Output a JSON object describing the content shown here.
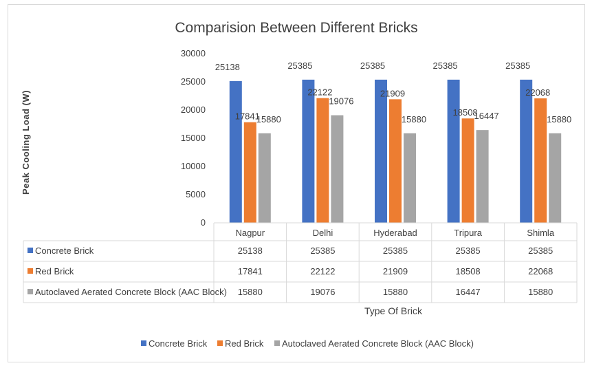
{
  "chart_data": {
    "type": "bar",
    "title": "Comparision Between Different Bricks",
    "xlabel": "Type Of Brick",
    "ylabel": "Peak Cooling Load (W)",
    "ylim": [
      0,
      30000
    ],
    "yticks": [
      0,
      5000,
      10000,
      15000,
      20000,
      25000,
      30000
    ],
    "categories": [
      "Nagpur",
      "Delhi",
      "Hyderabad",
      "Tripura",
      "Shimla"
    ],
    "series": [
      {
        "name": "Concrete Brick",
        "color": "#4472c4",
        "values": [
          25138,
          25385,
          25385,
          25385,
          25385
        ]
      },
      {
        "name": "Red Brick",
        "color": "#ed7d31",
        "values": [
          17841,
          22122,
          21909,
          18508,
          22068
        ]
      },
      {
        "name": "Autoclaved Aerated Concrete Block (AAC Block)",
        "color": "#a5a5a5",
        "values": [
          15880,
          19076,
          15880,
          16447,
          15880
        ]
      }
    ],
    "grid": false,
    "legend": "bottom",
    "data_table": true
  }
}
